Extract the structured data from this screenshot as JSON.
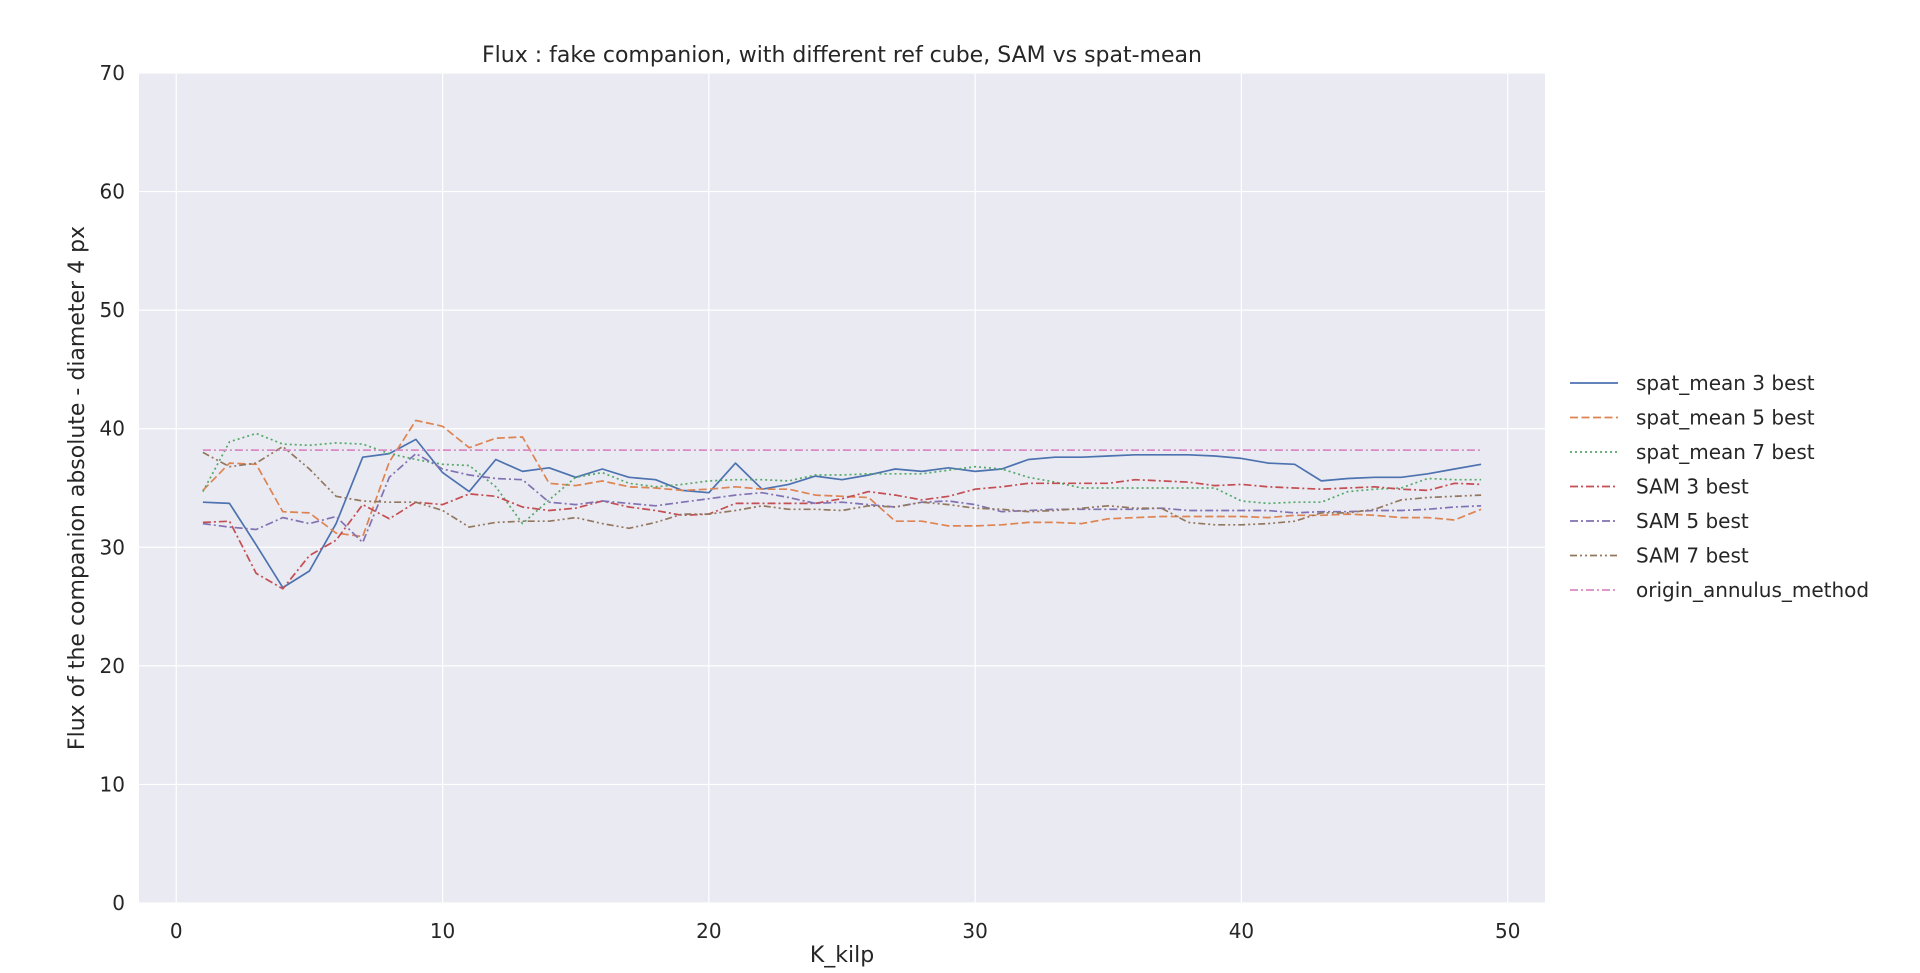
{
  "chart_data": {
    "type": "line",
    "title": "Flux : fake companion, with different ref cube, SAM vs spat-mean",
    "xlabel": "K_kilp",
    "ylabel": "Flux of the companion absolute - diameter 4 px",
    "xlim": [
      -1.4,
      51.4
    ],
    "ylim": [
      0,
      70
    ],
    "xticks": [
      0,
      10,
      20,
      30,
      40,
      50
    ],
    "yticks": [
      0,
      10,
      20,
      30,
      40,
      50,
      60,
      70
    ],
    "grid": true,
    "legend_position": "right-outside",
    "x": [
      1,
      2,
      3,
      4,
      5,
      6,
      7,
      8,
      9,
      10,
      11,
      12,
      13,
      14,
      15,
      16,
      17,
      18,
      19,
      20,
      21,
      22,
      23,
      24,
      25,
      26,
      27,
      28,
      29,
      30,
      31,
      32,
      33,
      34,
      35,
      36,
      37,
      38,
      39,
      40,
      41,
      42,
      43,
      44,
      45,
      46,
      47,
      48,
      49
    ],
    "series": [
      {
        "name": "spat_mean 3 best",
        "color": "#4c72b0",
        "dash": "solid",
        "values": [
          33.8,
          33.7,
          30.2,
          26.6,
          28.0,
          32.0,
          37.6,
          37.9,
          39.1,
          36.3,
          34.7,
          37.4,
          36.4,
          36.7,
          35.9,
          36.6,
          35.9,
          35.7,
          34.8,
          34.6,
          37.1,
          34.9,
          35.3,
          36.0,
          35.7,
          36.1,
          36.6,
          36.4,
          36.7,
          36.4,
          36.6,
          37.4,
          37.6,
          37.6,
          37.7,
          37.8,
          37.8,
          37.8,
          37.7,
          37.5,
          37.1,
          37.0,
          35.6,
          35.8,
          35.9,
          35.9,
          36.2,
          36.6,
          37.0
        ]
      },
      {
        "name": "spat_mean 5 best",
        "color": "#dd8452",
        "dash": "dashed",
        "values": [
          34.8,
          37.1,
          37.0,
          33.0,
          32.9,
          31.2,
          30.9,
          37.2,
          40.7,
          40.2,
          38.4,
          39.2,
          39.3,
          35.4,
          35.2,
          35.6,
          35.1,
          35.0,
          34.8,
          34.9,
          35.1,
          34.9,
          34.9,
          34.4,
          34.3,
          34.2,
          32.2,
          32.2,
          31.8,
          31.8,
          31.9,
          32.1,
          32.1,
          32.0,
          32.4,
          32.5,
          32.6,
          32.6,
          32.6,
          32.6,
          32.5,
          32.7,
          32.7,
          32.8,
          32.7,
          32.5,
          32.5,
          32.3,
          33.2
        ]
      },
      {
        "name": "spat_mean 7 best",
        "color": "#55a868",
        "dash": "dotted",
        "values": [
          34.7,
          38.9,
          39.6,
          38.7,
          38.6,
          38.8,
          38.7,
          37.9,
          37.4,
          37.0,
          36.9,
          35.1,
          32.0,
          34.0,
          35.9,
          36.3,
          35.4,
          35.1,
          35.3,
          35.6,
          35.7,
          35.7,
          35.6,
          36.1,
          36.1,
          36.2,
          36.2,
          36.2,
          36.5,
          36.8,
          36.6,
          35.9,
          35.5,
          35.0,
          35.0,
          35.0,
          35.0,
          35.0,
          35.0,
          33.9,
          33.7,
          33.8,
          33.8,
          34.7,
          34.9,
          35.0,
          35.8,
          35.7,
          35.7
        ]
      },
      {
        "name": "SAM 3 best",
        "color": "#c44e52",
        "dash": "dashdot",
        "values": [
          32.1,
          32.2,
          27.8,
          26.5,
          29.3,
          30.6,
          33.6,
          32.4,
          33.8,
          33.6,
          34.5,
          34.3,
          33.4,
          33.1,
          33.3,
          33.9,
          33.4,
          33.1,
          32.7,
          32.8,
          33.7,
          33.7,
          33.7,
          33.7,
          34.1,
          34.7,
          34.4,
          34.0,
          34.3,
          34.9,
          35.1,
          35.4,
          35.4,
          35.4,
          35.4,
          35.7,
          35.6,
          35.5,
          35.2,
          35.3,
          35.1,
          35.0,
          34.9,
          35.0,
          35.1,
          34.9,
          34.8,
          35.4,
          35.3
        ]
      },
      {
        "name": "SAM 5 best",
        "color": "#8172b3",
        "dash": "dashdot",
        "values": [
          32.0,
          31.7,
          31.5,
          32.5,
          32.0,
          32.6,
          30.4,
          35.9,
          37.9,
          36.6,
          36.1,
          35.8,
          35.7,
          33.8,
          33.6,
          33.9,
          33.7,
          33.5,
          33.8,
          34.1,
          34.4,
          34.6,
          34.2,
          33.7,
          33.8,
          33.6,
          33.4,
          33.8,
          33.9,
          33.6,
          33.0,
          33.1,
          33.2,
          33.2,
          33.2,
          33.2,
          33.3,
          33.1,
          33.1,
          33.1,
          33.1,
          32.9,
          33.0,
          33.0,
          33.1,
          33.1,
          33.2,
          33.4,
          33.5
        ]
      },
      {
        "name": "SAM 7 best",
        "color": "#937860",
        "dash": "dashdotdot",
        "values": [
          38.0,
          36.8,
          37.1,
          38.5,
          36.6,
          34.3,
          33.9,
          33.8,
          33.8,
          33.1,
          31.7,
          32.1,
          32.2,
          32.2,
          32.5,
          32.0,
          31.6,
          32.1,
          32.8,
          32.8,
          33.1,
          33.5,
          33.2,
          33.2,
          33.1,
          33.5,
          33.4,
          33.8,
          33.6,
          33.3,
          33.2,
          33.0,
          33.1,
          33.3,
          33.5,
          33.3,
          33.3,
          32.1,
          31.9,
          31.9,
          32.0,
          32.2,
          32.9,
          32.9,
          33.2,
          34.0,
          34.2,
          34.3,
          34.4
        ]
      },
      {
        "name": "origin_annulus_method",
        "color": "#da8bc3",
        "dash": "dashdot",
        "values": [
          38.2,
          38.2,
          38.2,
          38.2,
          38.2,
          38.2,
          38.2,
          38.2,
          38.2,
          38.2,
          38.2,
          38.2,
          38.2,
          38.2,
          38.2,
          38.2,
          38.2,
          38.2,
          38.2,
          38.2,
          38.2,
          38.2,
          38.2,
          38.2,
          38.2,
          38.2,
          38.2,
          38.2,
          38.2,
          38.2,
          38.2,
          38.2,
          38.2,
          38.2,
          38.2,
          38.2,
          38.2,
          38.2,
          38.2,
          38.2,
          38.2,
          38.2,
          38.2,
          38.2,
          38.2,
          38.2,
          38.2,
          38.2,
          38.2
        ]
      }
    ]
  }
}
